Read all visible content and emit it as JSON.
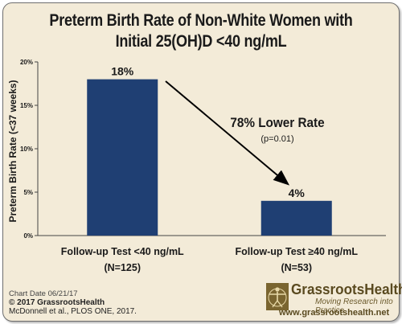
{
  "header": {
    "title_line1": "Preterm Birth Rate of Non-White Women with",
    "title_line2": "Initial 25(OH)D <40 ng/mL"
  },
  "chart_data": {
    "type": "bar",
    "ylabel": "Preterm Birth Rate (<37 weeks)",
    "ylim": [
      0,
      20
    ],
    "yticks": [
      0,
      5,
      10,
      15,
      20
    ],
    "ytick_labels": [
      "0%",
      "5%",
      "10%",
      "15%",
      "20%"
    ],
    "categories": [
      {
        "line1": "Follow-up Test <40 ng/mL",
        "line2": "(N=125)"
      },
      {
        "line1": "Follow-up Test ≥40 ng/mL",
        "line2": "(N=53)"
      }
    ],
    "values": [
      18,
      4
    ],
    "data_labels": [
      "18%",
      "4%"
    ],
    "bar_color": "#1f3f73",
    "annotation": {
      "text": "78% Lower Rate",
      "subtext": "(p=0.01)"
    }
  },
  "footer": {
    "chart_date": "Chart Date 06/21/17",
    "copyright": "© 2017 GrassrootsHealth",
    "citation": "McDonnell et al., PLOS ONE, 2017."
  },
  "logo": {
    "name": "GrassrootsHealth",
    "tagline": "Moving Research into Practice",
    "url": "www.grassrootshealth.net"
  }
}
